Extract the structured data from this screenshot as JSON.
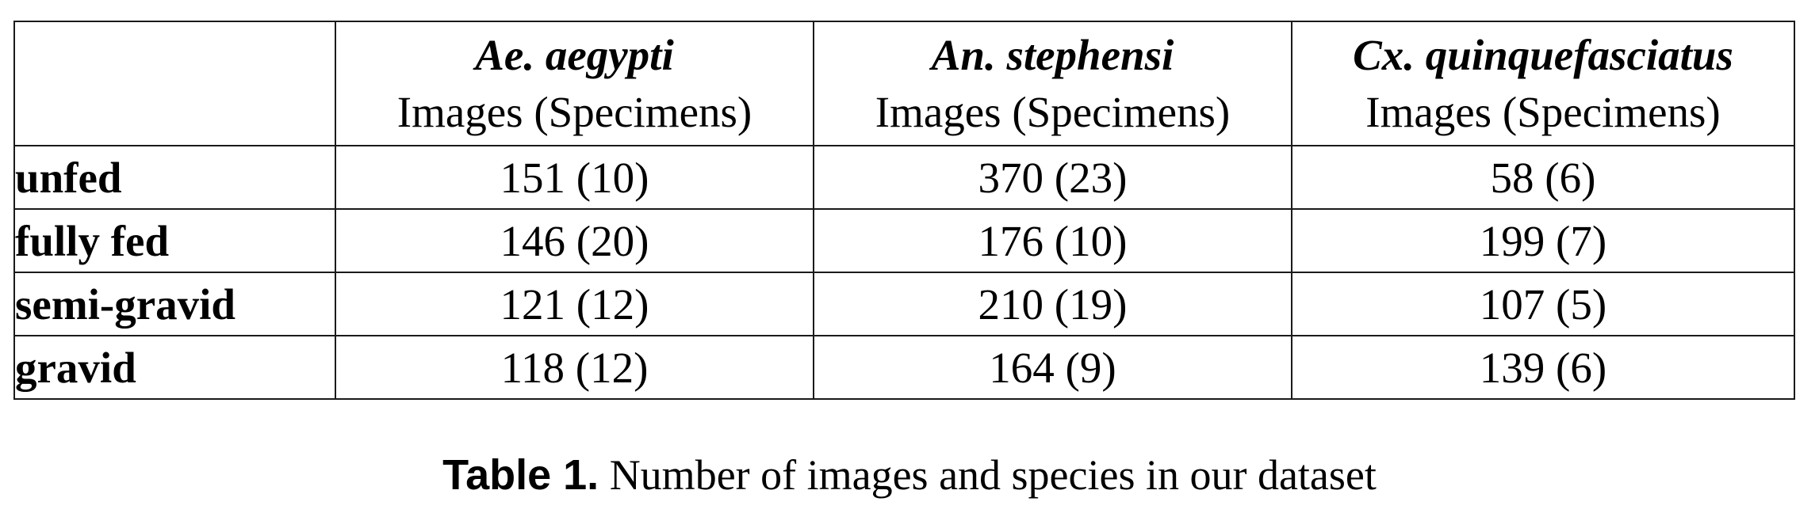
{
  "table": {
    "columns": [
      {
        "species": "Ae. aegypti",
        "unit": "Images (Specimens)"
      },
      {
        "species": "An. stephensi",
        "unit": "Images (Specimens)"
      },
      {
        "species": "Cx. quinquefasciatus",
        "unit": "Images (Specimens)"
      }
    ],
    "rows": [
      {
        "label": "unfed",
        "cells": [
          "151 (10)",
          "370 (23)",
          "58 (6)"
        ]
      },
      {
        "label": "fully fed",
        "cells": [
          "146 (20)",
          "176 (10)",
          "199 (7)"
        ]
      },
      {
        "label": "semi-gravid",
        "cells": [
          "121 (12)",
          "210 (19)",
          "107 (5)"
        ]
      },
      {
        "label": "gravid",
        "cells": [
          "118 (12)",
          "164 (9)",
          "139 (6)"
        ]
      }
    ]
  },
  "caption": {
    "label": "Table 1.",
    "text": "Number of images and species in our dataset"
  }
}
